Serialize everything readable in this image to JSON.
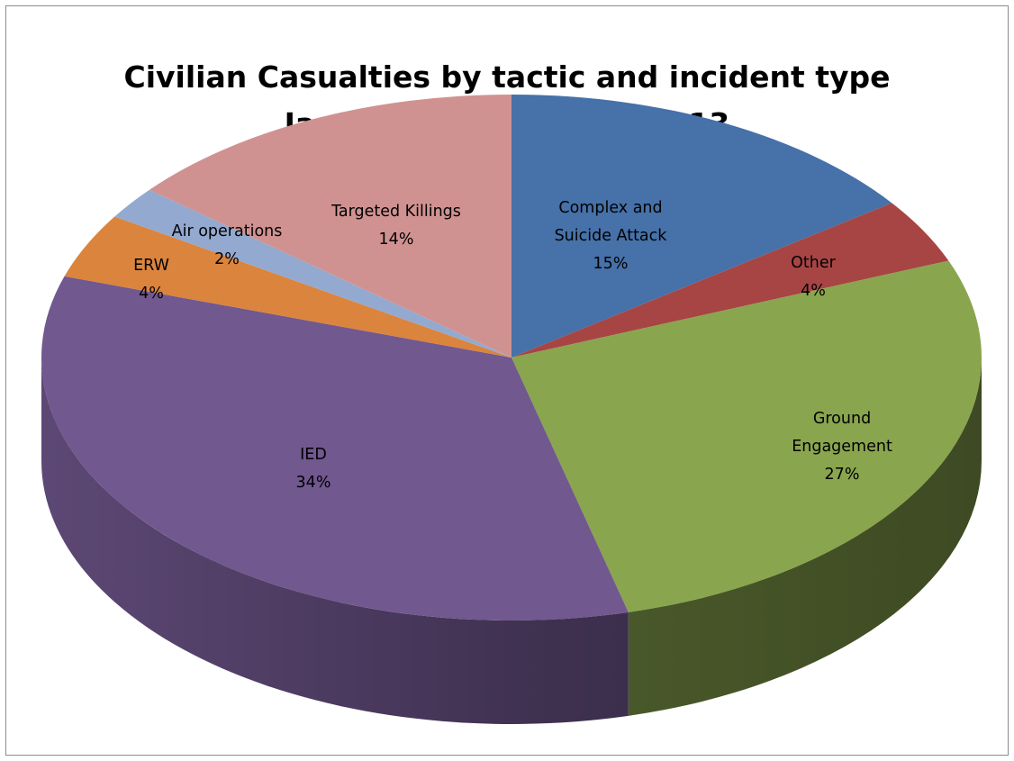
{
  "chart_data": {
    "type": "pie",
    "title": "Civilian Casualties by tactic and incident type",
    "subtitle": "January to December 2013",
    "slices": [
      {
        "label_lines": [
          "Complex and",
          "Suicide Attack"
        ],
        "value": 15,
        "percent_label": "15%",
        "color": "#4671a9"
      },
      {
        "label_lines": [
          "Other"
        ],
        "value": 4,
        "percent_label": "4%",
        "color": "#a74544"
      },
      {
        "label_lines": [
          "Ground",
          "Engagement"
        ],
        "value": 27,
        "percent_label": "27%",
        "color": "#89a54e"
      },
      {
        "label_lines": [
          "IED"
        ],
        "value": 34,
        "percent_label": "34%",
        "color": "#71588f"
      },
      {
        "label_lines": [
          "ERW"
        ],
        "value": 4,
        "percent_label": "4%",
        "color": "#db843d"
      },
      {
        "label_lines": [
          "Air operations"
        ],
        "value": 2,
        "percent_label": "2%",
        "color": "#93a9cf"
      },
      {
        "label_lines": [
          "Targeted Killings"
        ],
        "value": 14,
        "percent_label": "14%",
        "color": "#d09291"
      }
    ],
    "legend": "none",
    "style": "3d-pie"
  }
}
